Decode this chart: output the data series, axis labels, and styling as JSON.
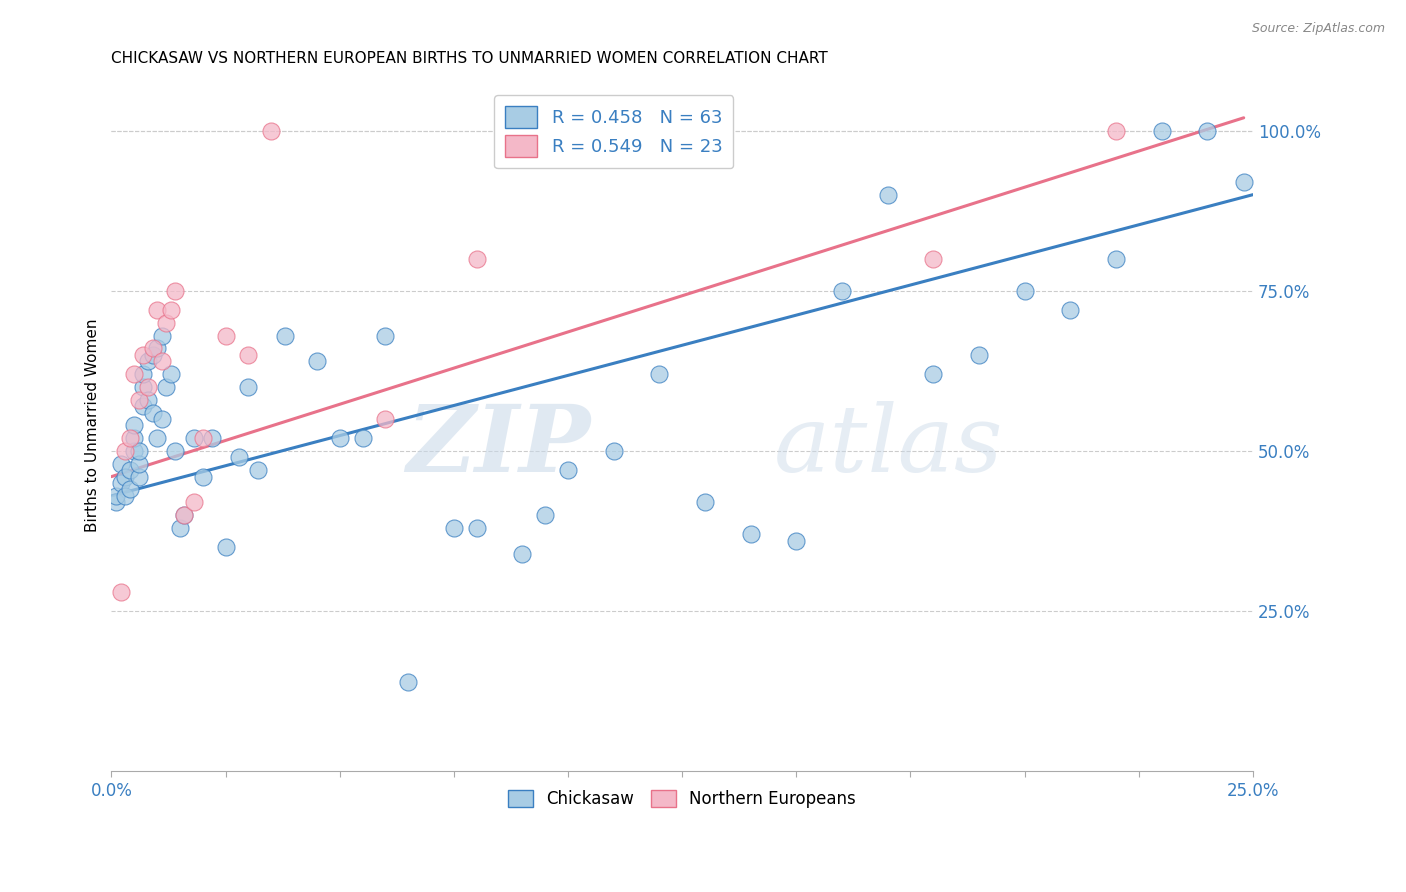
{
  "title": "CHICKASAW VS NORTHERN EUROPEAN BIRTHS TO UNMARRIED WOMEN CORRELATION CHART",
  "source": "Source: ZipAtlas.com",
  "ylabel": "Births to Unmarried Women",
  "ylabel_tick_vals": [
    0.25,
    0.5,
    0.75,
    1.0
  ],
  "chickasaw_color": "#a8cce4",
  "northern_color": "#f4b8c8",
  "trendline_chickasaw_color": "#3a7fc1",
  "trendline_northern_color": "#e8728a",
  "watermark_zip": "ZIP",
  "watermark_atlas": "atlas",
  "xmin": 0.0,
  "xmax": 0.25,
  "ymin": 0.0,
  "ymax": 1.08,
  "chickasaw_x": [
    0.001,
    0.001,
    0.002,
    0.002,
    0.003,
    0.003,
    0.004,
    0.004,
    0.005,
    0.005,
    0.005,
    0.006,
    0.006,
    0.006,
    0.007,
    0.007,
    0.007,
    0.008,
    0.008,
    0.009,
    0.009,
    0.01,
    0.01,
    0.011,
    0.011,
    0.012,
    0.013,
    0.014,
    0.015,
    0.016,
    0.018,
    0.02,
    0.022,
    0.025,
    0.028,
    0.03,
    0.032,
    0.038,
    0.045,
    0.05,
    0.055,
    0.06,
    0.065,
    0.075,
    0.08,
    0.09,
    0.095,
    0.1,
    0.11,
    0.12,
    0.13,
    0.14,
    0.15,
    0.16,
    0.17,
    0.18,
    0.19,
    0.2,
    0.21,
    0.22,
    0.23,
    0.24,
    0.248
  ],
  "chickasaw_y": [
    0.42,
    0.43,
    0.45,
    0.48,
    0.43,
    0.46,
    0.44,
    0.47,
    0.5,
    0.52,
    0.54,
    0.46,
    0.48,
    0.5,
    0.57,
    0.6,
    0.62,
    0.58,
    0.64,
    0.56,
    0.65,
    0.52,
    0.66,
    0.55,
    0.68,
    0.6,
    0.62,
    0.5,
    0.38,
    0.4,
    0.52,
    0.46,
    0.52,
    0.35,
    0.49,
    0.6,
    0.47,
    0.68,
    0.64,
    0.52,
    0.52,
    0.68,
    0.14,
    0.38,
    0.38,
    0.34,
    0.4,
    0.47,
    0.5,
    0.62,
    0.42,
    0.37,
    0.36,
    0.75,
    0.9,
    0.62,
    0.65,
    0.75,
    0.72,
    0.8,
    1.0,
    1.0,
    0.92
  ],
  "northern_x": [
    0.002,
    0.003,
    0.004,
    0.005,
    0.006,
    0.007,
    0.008,
    0.009,
    0.01,
    0.011,
    0.012,
    0.013,
    0.014,
    0.016,
    0.018,
    0.02,
    0.025,
    0.03,
    0.035,
    0.06,
    0.08,
    0.18,
    0.22
  ],
  "northern_y": [
    0.28,
    0.5,
    0.52,
    0.62,
    0.58,
    0.65,
    0.6,
    0.66,
    0.72,
    0.64,
    0.7,
    0.72,
    0.75,
    0.4,
    0.42,
    0.52,
    0.68,
    0.65,
    1.0,
    0.55,
    0.8,
    0.8,
    1.0
  ],
  "trendline_chickasaw_x0": 0.0,
  "trendline_chickasaw_x1": 0.25,
  "trendline_chickasaw_y0": 0.43,
  "trendline_chickasaw_y1": 0.9,
  "trendline_northern_x0": 0.0,
  "trendline_northern_x1": 0.248,
  "trendline_northern_y0": 0.46,
  "trendline_northern_y1": 1.02
}
